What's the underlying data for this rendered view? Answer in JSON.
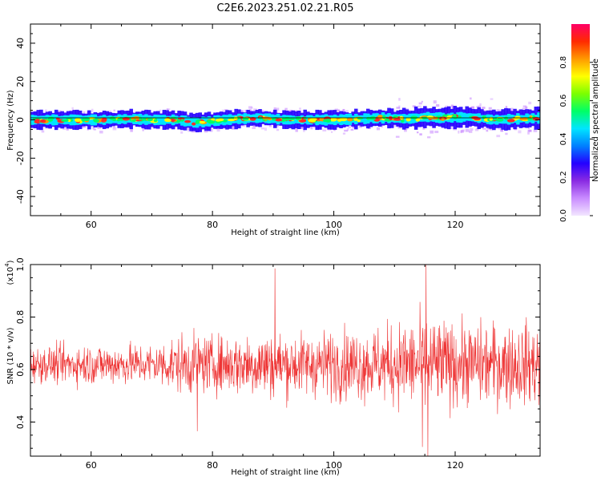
{
  "figure": {
    "title": "C2E6.2023.251.02.21.R05"
  },
  "chart_data": [
    {
      "type": "heatmap",
      "xlabel": "Height of straight line (km)",
      "ylabel": "Frequency (Hz)",
      "xlim": [
        50,
        134
      ],
      "ylim": [
        -50,
        50
      ],
      "xticks": [
        60,
        80,
        100,
        120
      ],
      "yticks": [
        -40,
        -20,
        0,
        20,
        40
      ],
      "band": {
        "center_hz": 0,
        "core_halfwidth_hz": 3,
        "outer_halfwidth_hz": 6,
        "center_offsets_hz": [
          [
            50,
            0
          ],
          [
            56,
            0
          ],
          [
            62,
            0
          ],
          [
            66,
            0.5
          ],
          [
            70,
            0
          ],
          [
            74,
            0
          ],
          [
            77,
            -1.5
          ],
          [
            80,
            -0.5
          ],
          [
            84,
            0.5
          ],
          [
            88,
            1
          ],
          [
            92,
            0
          ],
          [
            96,
            0
          ],
          [
            100,
            0
          ],
          [
            104,
            0.5
          ],
          [
            108,
            1
          ],
          [
            112,
            0.5
          ],
          [
            115,
            1.5
          ],
          [
            118,
            1
          ],
          [
            122,
            1.5
          ],
          [
            126,
            0
          ],
          [
            130,
            0.5
          ],
          [
            134,
            1
          ]
        ]
      },
      "colorbar": {
        "label": "Normalized spectral amplitude",
        "range": [
          0,
          1
        ],
        "ticks": [
          "0.0",
          "0.2",
          "0.4",
          "0.6",
          "0.8"
        ],
        "tick_values": [
          0,
          0.2,
          0.4,
          0.6,
          0.8
        ],
        "colormap": [
          "#f2e6ff",
          "#c98cff",
          "#8a2be2",
          "#2400ff",
          "#0080ff",
          "#00e5ff",
          "#00ff66",
          "#7cff00",
          "#ffff00",
          "#ff9900",
          "#ff2a00",
          "#ff0066"
        ]
      },
      "colors": {
        "ridge": "#ff2a2a",
        "core": "#00e5ff",
        "edge": "#2400ff",
        "halo": "#c98cff"
      }
    },
    {
      "type": "line",
      "series": [
        {
          "color": "#ee3333",
          "x_range": [
            50,
            134
          ],
          "mean": 0.62,
          "spread": [
            [
              50,
              0.05
            ],
            [
              60,
              0.06
            ],
            [
              70,
              0.06
            ],
            [
              76,
              0.09
            ],
            [
              80,
              0.08
            ],
            [
              88,
              0.1
            ],
            [
              95,
              0.09
            ],
            [
              100,
              0.1
            ],
            [
              108,
              0.11
            ],
            [
              115,
              0.14
            ],
            [
              120,
              0.12
            ],
            [
              134,
              0.12
            ]
          ],
          "peaks": [
            [
              90.3,
              0.985
            ],
            [
              115.2,
              1.0
            ],
            [
              114.6,
              0.305
            ],
            [
              115.5,
              0.27
            ],
            [
              77.5,
              0.365
            ]
          ]
        }
      ],
      "xlabel": "Height of straight line (km)",
      "ylabel": "SNR (10 * v/v)",
      "yexponent": "(x10",
      "yexponent_power": "4",
      "yexponent_close": ")",
      "xlim": [
        50,
        134
      ],
      "ylim": [
        0.27,
        1.0
      ],
      "xticks": [
        60,
        80,
        100,
        120
      ],
      "yticks": [
        0.4,
        0.6,
        0.8
      ],
      "ytick_labels": [
        "0.4",
        "0.6",
        "0.8"
      ],
      "top_tick_label": "1.0"
    }
  ]
}
